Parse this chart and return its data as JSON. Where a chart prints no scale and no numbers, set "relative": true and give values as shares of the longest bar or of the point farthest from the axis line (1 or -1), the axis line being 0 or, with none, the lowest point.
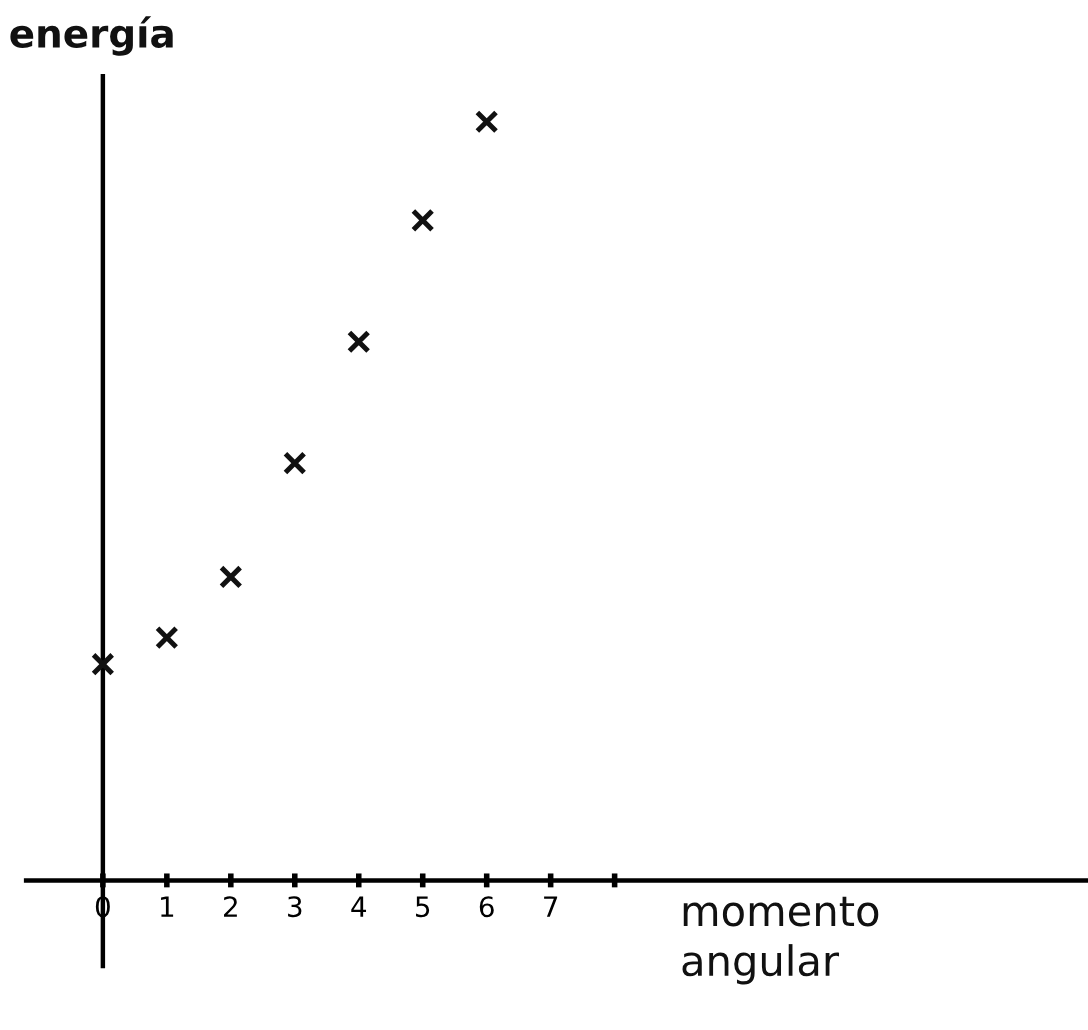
{
  "chart_data": {
    "type": "scatter",
    "relative": true,
    "ylabel": "energía",
    "xlabel": "momento\nangular",
    "x": [
      0,
      1,
      2,
      3,
      4,
      5,
      6
    ],
    "series": [
      {
        "color": "#111111",
        "values": [
          0.285,
          0.32,
          0.4,
          0.55,
          0.71,
          0.87,
          1.0
        ]
      }
    ],
    "marker": "cross",
    "xlim": [
      -1.2,
      15.4
    ],
    "xticks": [
      0,
      1,
      2,
      3,
      4,
      5,
      6,
      7,
      {
        "value": 8,
        "label": null
      }
    ],
    "legend": false
  }
}
